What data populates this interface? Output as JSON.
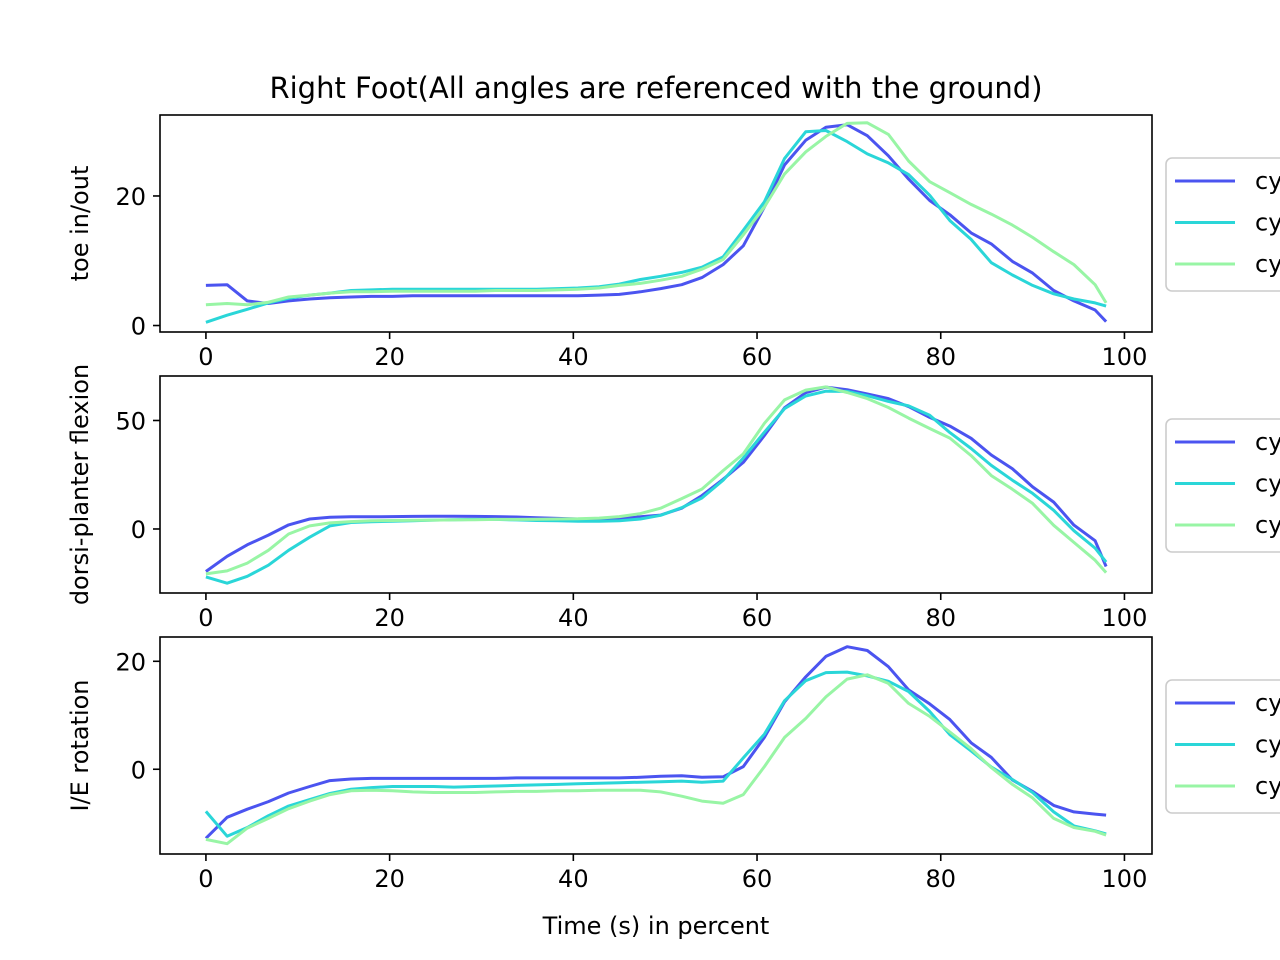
{
  "title": "Right Foot(All angles are referenced with the ground)",
  "xlabel": "Time (s) in percent",
  "colors": {
    "cycle_1": "#4b54f0",
    "cycle_2": "#2ad6d8",
    "cycle_3": "#98f5a5"
  },
  "chart_data": [
    {
      "type": "line",
      "ylabel": "toe in/out",
      "xlim": [
        -5,
        103
      ],
      "ylim": [
        -1,
        32.5
      ],
      "xticks": [
        0,
        20,
        40,
        60,
        80,
        100
      ],
      "yticks": [
        0,
        20
      ],
      "legend": {
        "placement": "right",
        "entries": [
          "cy",
          "cy",
          "cy"
        ]
      },
      "x": [
        0,
        2.3,
        4.5,
        6.8,
        9,
        11.3,
        13.5,
        15.8,
        18,
        20.3,
        22.5,
        24.8,
        27,
        29.3,
        31.5,
        33.8,
        36,
        38.3,
        40.5,
        42.8,
        45,
        47.3,
        49.5,
        51.8,
        54,
        56.3,
        58.5,
        60.8,
        63,
        65.3,
        67.5,
        69.8,
        72,
        74.3,
        76.5,
        78.8,
        81,
        83.3,
        85.5,
        87.8,
        90,
        92.3,
        94.5,
        96.8,
        98
      ],
      "series": [
        {
          "values": [
            6.2,
            6.3,
            3.8,
            3.4,
            3.8,
            4.1,
            4.3,
            4.4,
            4.5,
            4.5,
            4.6,
            4.6,
            4.6,
            4.6,
            4.6,
            4.6,
            4.6,
            4.6,
            4.6,
            4.7,
            4.8,
            5.2,
            5.7,
            6.3,
            7.4,
            9.4,
            12.3,
            18.3,
            24.8,
            28.6,
            30.6,
            31,
            29.3,
            26.2,
            22.6,
            19.3,
            17.1,
            14.3,
            12.6,
            9.9,
            8.1,
            5.4,
            3.8,
            2.4,
            0.6
          ]
        },
        {
          "values": [
            0.5,
            1.6,
            2.5,
            3.5,
            4.2,
            4.7,
            5.0,
            5.4,
            5.5,
            5.6,
            5.6,
            5.6,
            5.6,
            5.6,
            5.6,
            5.6,
            5.6,
            5.7,
            5.8,
            6.0,
            6.4,
            7.1,
            7.6,
            8.2,
            9.0,
            10.6,
            14.7,
            19.1,
            25.8,
            29.9,
            30.1,
            28.4,
            26.5,
            25.1,
            23.3,
            20.1,
            16.2,
            13.3,
            9.7,
            7.8,
            6.2,
            4.9,
            4.1,
            3.5,
            3.0
          ]
        },
        {
          "values": [
            3.2,
            3.4,
            3.2,
            3.6,
            4.4,
            4.7,
            5.0,
            5.2,
            5.2,
            5.3,
            5.3,
            5.3,
            5.3,
            5.3,
            5.4,
            5.4,
            5.4,
            5.5,
            5.6,
            5.8,
            6.2,
            6.5,
            7.0,
            7.6,
            8.7,
            10.2,
            14.0,
            18.3,
            23.4,
            26.8,
            29.2,
            31.2,
            31.3,
            29.5,
            25.4,
            22.2,
            20.5,
            18.7,
            17.2,
            15.5,
            13.6,
            11.4,
            9.4,
            6.3,
            3.5
          ]
        }
      ]
    },
    {
      "type": "line",
      "ylabel": "dorsi-planter flexion",
      "xlim": [
        -5,
        103
      ],
      "ylim": [
        -29.5,
        70.5
      ],
      "xticks": [
        0,
        20,
        40,
        60,
        80,
        100
      ],
      "yticks": [
        0,
        50
      ],
      "legend": {
        "placement": "right",
        "entries": [
          "cy",
          "cy",
          "cy"
        ]
      },
      "x": [
        0,
        2.3,
        4.5,
        6.8,
        9,
        11.3,
        13.5,
        15.8,
        18,
        20.3,
        22.5,
        24.8,
        27,
        29.3,
        31.5,
        33.8,
        36,
        38.3,
        40.5,
        42.8,
        45,
        47.3,
        49.5,
        51.8,
        54,
        56.3,
        58.5,
        60.8,
        63,
        65.3,
        67.5,
        69.8,
        72,
        74.3,
        76.5,
        78.8,
        81,
        83.3,
        85.5,
        87.8,
        90,
        92.3,
        94.5,
        96.8,
        98
      ],
      "series": [
        {
          "values": [
            -19.6,
            -12.6,
            -7.3,
            -2.8,
            1.9,
            4.6,
            5.4,
            5.6,
            5.6,
            5.7,
            5.8,
            5.9,
            5.9,
            5.8,
            5.7,
            5.5,
            5.2,
            4.9,
            4.6,
            4.6,
            4.9,
            5.6,
            6.4,
            9.6,
            15.4,
            22.9,
            30.7,
            43.1,
            55.9,
            62.8,
            65.4,
            64.2,
            62.2,
            60.1,
            56.4,
            51.4,
            47.4,
            41.8,
            34.1,
            27.8,
            19.4,
            12.4,
            1.8,
            -5.4,
            -17.3
          ]
        },
        {
          "values": [
            -22.1,
            -25,
            -21.8,
            -16.7,
            -9.8,
            -3.8,
            1.4,
            3,
            3.3,
            3.6,
            3.8,
            4.1,
            4.3,
            4.4,
            4.4,
            4.2,
            3.9,
            3.8,
            3.6,
            3.6,
            3.8,
            4.6,
            6.3,
            9.8,
            14.3,
            22.5,
            32.7,
            44.6,
            55.5,
            61.3,
            63.5,
            63.4,
            61.4,
            58.8,
            56.7,
            52.4,
            44.4,
            37.1,
            29.3,
            22.5,
            16.4,
            8.6,
            -0.8,
            -8.8,
            -15.2
          ]
        },
        {
          "values": [
            -20.7,
            -19.3,
            -15.7,
            -9.8,
            -2.3,
            1.4,
            2.8,
            3.4,
            3.8,
            3.9,
            4,
            4.1,
            4.2,
            4.3,
            4.4,
            4.4,
            4.5,
            4.6,
            4.7,
            5,
            5.7,
            7.1,
            9.6,
            14,
            18.4,
            26.9,
            34.6,
            48.7,
            59.5,
            64,
            65.5,
            62.9,
            60.1,
            56,
            51.1,
            46.3,
            41.9,
            33.8,
            24.6,
            18.3,
            11.8,
            1.7,
            -6.2,
            -14.4,
            -20.1
          ]
        }
      ]
    },
    {
      "type": "line",
      "ylabel": "I/E rotation",
      "xlim": [
        -5,
        103
      ],
      "ylim": [
        -15.7,
        24.5
      ],
      "xticks": [
        0,
        20,
        40,
        60,
        80,
        100
      ],
      "yticks": [
        0,
        20
      ],
      "legend": {
        "placement": "right",
        "entries": [
          "cy",
          "cy",
          "cy"
        ]
      },
      "x": [
        0,
        2.3,
        4.5,
        6.8,
        9,
        11.3,
        13.5,
        15.8,
        18,
        20.3,
        22.5,
        24.8,
        27,
        29.3,
        31.5,
        33.8,
        36,
        38.3,
        40.5,
        42.8,
        45,
        47.3,
        49.5,
        51.8,
        54,
        56.3,
        58.5,
        60.8,
        63,
        65.3,
        67.5,
        69.8,
        72,
        74.3,
        76.5,
        78.8,
        81,
        83.3,
        85.5,
        87.8,
        90,
        92.3,
        94.5,
        96.8,
        98
      ],
      "series": [
        {
          "values": [
            -12.8,
            -8.9,
            -7.4,
            -6,
            -4.4,
            -3.2,
            -2.1,
            -1.8,
            -1.7,
            -1.7,
            -1.7,
            -1.7,
            -1.7,
            -1.7,
            -1.7,
            -1.6,
            -1.6,
            -1.6,
            -1.6,
            -1.6,
            -1.6,
            -1.5,
            -1.3,
            -1.2,
            -1.5,
            -1.4,
            0.5,
            5.9,
            12.5,
            17.1,
            20.9,
            22.7,
            22,
            19,
            14.7,
            12.1,
            9.2,
            4.9,
            2.2,
            -2,
            -4.1,
            -6.7,
            -7.9,
            -8.3,
            -8.5
          ]
        },
        {
          "values": [
            -7.8,
            -12.4,
            -10.8,
            -8.6,
            -6.8,
            -5.6,
            -4.5,
            -3.7,
            -3.4,
            -3.2,
            -3.2,
            -3.2,
            -3.3,
            -3.2,
            -3.1,
            -3,
            -2.9,
            -2.8,
            -2.7,
            -2.6,
            -2.5,
            -2.4,
            -2.3,
            -2.2,
            -2.4,
            -2.2,
            2.1,
            6.5,
            12.7,
            16.4,
            17.9,
            18,
            17.3,
            16.3,
            14.4,
            10.7,
            6.4,
            3.4,
            0.4,
            -1.9,
            -4.3,
            -7.9,
            -10.5,
            -11.4,
            -12
          ]
        },
        {
          "values": [
            -13,
            -13.8,
            -10.9,
            -9.1,
            -7.3,
            -5.9,
            -4.7,
            -4,
            -3.9,
            -4,
            -4.2,
            -4.3,
            -4.3,
            -4.3,
            -4.2,
            -4.1,
            -4.1,
            -4,
            -4,
            -3.9,
            -3.9,
            -3.9,
            -4.2,
            -5,
            -5.9,
            -6.3,
            -4.7,
            0.5,
            5.9,
            9.4,
            13.4,
            16.7,
            17.5,
            15.9,
            12.2,
            9.8,
            6.9,
            3.8,
            0.3,
            -2.8,
            -5.3,
            -9.1,
            -10.8,
            -11.5,
            -12.2
          ]
        }
      ]
    }
  ]
}
